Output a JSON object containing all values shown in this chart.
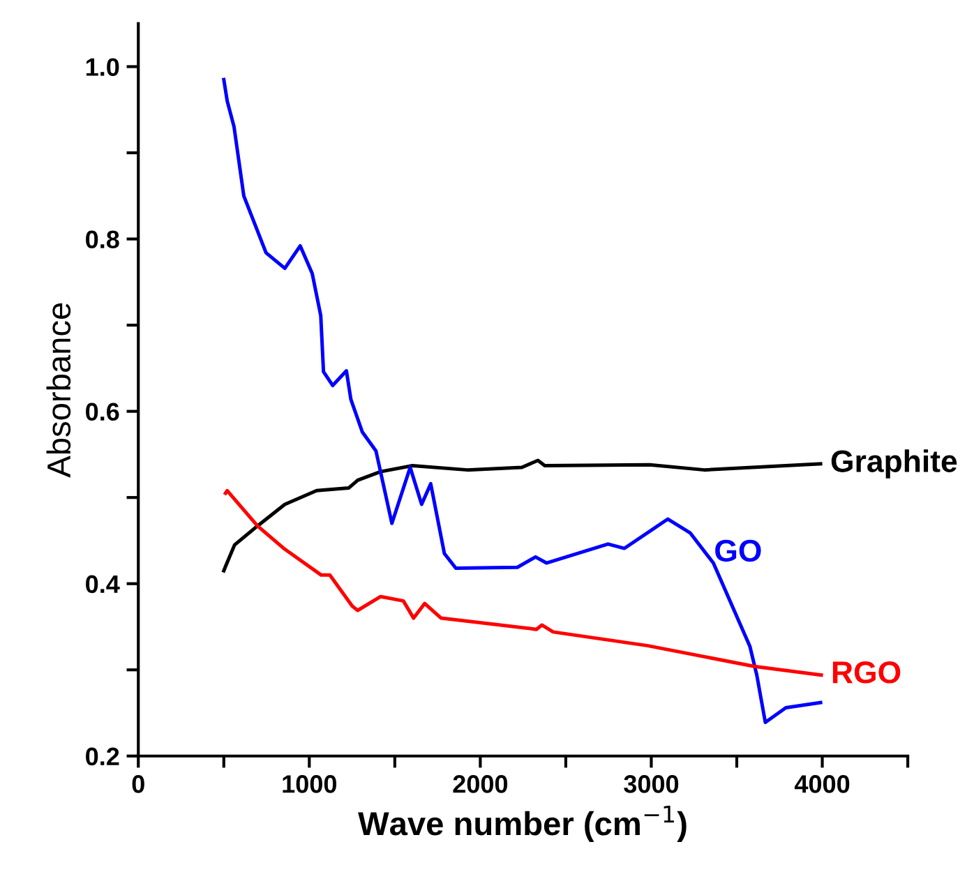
{
  "chart_data": {
    "type": "line",
    "xlabel": "Wave number (cm$^{−1}$)",
    "ylabel": "Absorbance",
    "xlim": [
      0,
      4500
    ],
    "ylim": [
      0.2,
      1.05
    ],
    "xticks": [
      0,
      {
        "value": 500,
        "label": null
      },
      1000,
      {
        "value": 1500,
        "label": null
      },
      2000,
      {
        "value": 2500,
        "label": null
      },
      3000,
      {
        "value": 3500,
        "label": null
      },
      4000,
      {
        "value": 4500,
        "label": null
      }
    ],
    "yticks": [
      "0.2",
      {
        "value": 0.3,
        "label": null
      },
      0.4,
      {
        "value": 0.5,
        "label": null
      },
      0.6,
      {
        "value": 0.7,
        "label": null
      },
      0.8,
      {
        "value": 0.9,
        "label": null
      },
      {
        "value": 1.0,
        "label": "1.0"
      }
    ],
    "grid": false,
    "legend": false,
    "marker": "none",
    "line_style": "solid",
    "series": [
      {
        "name": "Graphite",
        "color": "#000000",
        "x": [
          500,
          510,
          563,
          697,
          857,
          1043,
          1230,
          1283,
          1417,
          1603,
          1923,
          2243,
          2337,
          2377,
          2990,
          3310,
          3990
        ],
        "values": [
          0.415,
          0.42,
          0.445,
          0.467,
          0.492,
          0.508,
          0.511,
          0.52,
          0.53,
          0.537,
          0.532,
          0.535,
          0.543,
          0.537,
          0.538,
          0.532,
          0.539
        ]
      },
      {
        "name": "GO",
        "color": "#0000ff",
        "x": [
          500,
          520,
          560,
          617,
          747,
          857,
          947,
          1017,
          1067,
          1083,
          1137,
          1217,
          1243,
          1310,
          1390,
          1483,
          1590,
          1657,
          1710,
          1790,
          1857,
          2217,
          2323,
          2387,
          2747,
          2843,
          3097,
          3227,
          3363,
          3577,
          3617,
          3667,
          3787,
          3990
        ],
        "values": [
          0.985,
          0.96,
          0.93,
          0.85,
          0.784,
          0.766,
          0.792,
          0.76,
          0.711,
          0.646,
          0.63,
          0.647,
          0.614,
          0.576,
          0.554,
          0.47,
          0.535,
          0.492,
          0.516,
          0.435,
          0.418,
          0.419,
          0.431,
          0.424,
          0.446,
          0.441,
          0.475,
          0.459,
          0.424,
          0.327,
          0.294,
          0.239,
          0.256,
          0.262
        ]
      },
      {
        "name": "RGO",
        "color": "#ff0000",
        "x": [
          510,
          520,
          697,
          857,
          1070,
          1120,
          1251,
          1283,
          1417,
          1446,
          1550,
          1610,
          1675,
          1771,
          2328,
          2360,
          2426,
          2980,
          3602,
          3994
        ],
        "values": [
          0.505,
          0.508,
          0.467,
          0.44,
          0.41,
          0.41,
          0.374,
          0.369,
          0.385,
          0.384,
          0.38,
          0.36,
          0.377,
          0.36,
          0.347,
          0.352,
          0.344,
          0.328,
          0.304,
          0.294
        ]
      }
    ]
  }
}
